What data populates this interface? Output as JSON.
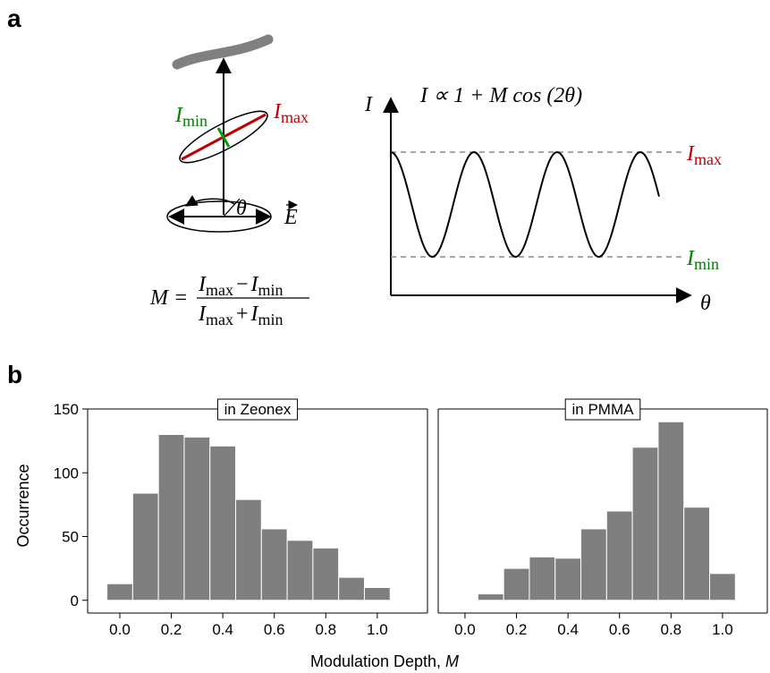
{
  "panel_a": {
    "label": "a",
    "diagram": {
      "i_min": {
        "base": "I",
        "sub": "min"
      },
      "i_max": {
        "base": "I",
        "sub": "max"
      },
      "theta": "θ",
      "field": "E",
      "formula": {
        "lhs": "M =",
        "numerator": [
          {
            "base": "I",
            "sub": "max"
          },
          "−",
          {
            "base": "I",
            "sub": "min"
          }
        ],
        "denominator": [
          {
            "base": "I",
            "sub": "max"
          },
          "+",
          {
            "base": "I",
            "sub": "min"
          }
        ]
      }
    },
    "plot": {
      "y_axis": "I",
      "x_axis": "θ",
      "equation": "I ∝ 1 + M cos (2θ)",
      "upper": {
        "base": "I",
        "sub": "max"
      },
      "lower": {
        "base": "I",
        "sub": "min"
      }
    }
  },
  "panel_b": {
    "label": "b",
    "xlabel": "Modulation Depth,",
    "xlabel_var": "M"
  },
  "chart_data": [
    {
      "type": "histogram",
      "title": "in Zeonex",
      "ylabel": "Occurrence",
      "color": "#7f7f7f",
      "bins": [
        -0.05,
        0.05,
        0.15,
        0.25,
        0.35,
        0.45,
        0.55,
        0.65,
        0.75,
        0.85,
        0.95,
        1.05
      ],
      "values": [
        13,
        84,
        130,
        128,
        121,
        79,
        56,
        47,
        41,
        18,
        10
      ],
      "xlim": [
        -0.125,
        1.195
      ],
      "ylim": [
        -10,
        150
      ],
      "xticks": [
        {
          "value": 0,
          "label": "0.0"
        },
        {
          "value": 0.2,
          "label": "0.2"
        },
        {
          "value": 0.4,
          "label": "0.4"
        },
        {
          "value": 0.6,
          "label": "0.6"
        },
        {
          "value": 0.8,
          "label": "0.8"
        },
        {
          "value": 1,
          "label": "1.0"
        }
      ],
      "yticks": [
        0,
        50,
        100,
        150
      ]
    },
    {
      "type": "histogram",
      "title": "in PMMA",
      "color": "#7f7f7f",
      "bins": [
        -0.05,
        0.05,
        0.15,
        0.25,
        0.35,
        0.45,
        0.55,
        0.65,
        0.75,
        0.85,
        0.95,
        1.05
      ],
      "values": [
        0,
        5,
        25,
        34,
        33,
        56,
        70,
        120,
        140,
        73,
        21
      ],
      "xlim": [
        -0.104,
        1.174
      ],
      "ylim": [
        -10,
        150
      ],
      "xticks": [
        {
          "value": 0,
          "label": "0.0"
        },
        {
          "value": 0.2,
          "label": "0.2"
        },
        {
          "value": 0.4,
          "label": "0.4"
        },
        {
          "value": 0.6,
          "label": "0.6"
        },
        {
          "value": 0.8,
          "label": "0.8"
        },
        {
          "value": 1,
          "label": "1.0"
        }
      ]
    }
  ]
}
